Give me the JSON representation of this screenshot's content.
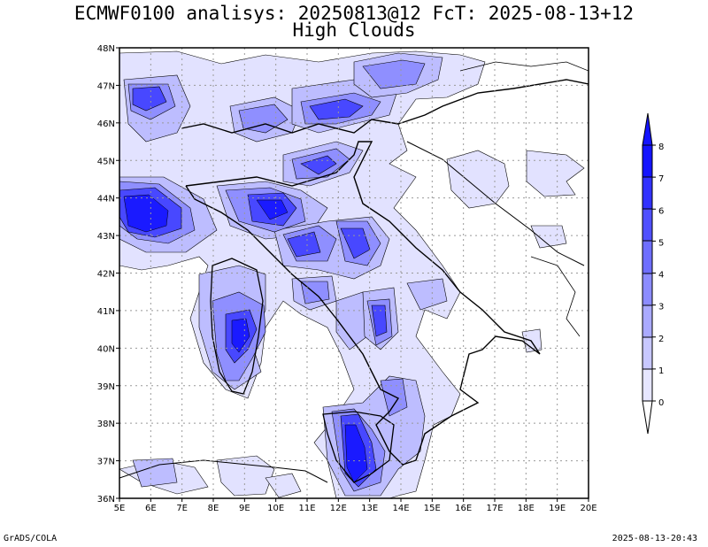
{
  "title": {
    "line1": "ECMWF0100 analisys: 20250813@12 FcT: 2025-08-13+12",
    "line2": "High Clouds"
  },
  "map": {
    "lon_labels": [
      "5E",
      "6E",
      "7E",
      "8E",
      "9E",
      "10E",
      "11E",
      "12E",
      "13E",
      "14E",
      "15E",
      "16E",
      "17E",
      "18E",
      "19E",
      "20E"
    ],
    "lat_labels": [
      "48N",
      "47N",
      "46N",
      "45N",
      "44N",
      "43N",
      "42N",
      "41N",
      "40N",
      "39N",
      "38N",
      "37N",
      "36N"
    ],
    "lon_range": [
      5,
      20
    ],
    "lat_range": [
      36,
      48
    ],
    "grid": "dotted",
    "colors": {
      "level_0_1": "#e6e6ff",
      "level_1_2": "#c8c8ff",
      "level_2_3": "#aaaaff",
      "level_3_4": "#8c8cff",
      "level_4_5": "#6e6eff",
      "level_5_6": "#5050ff",
      "level_6_7": "#3232ff",
      "level_7_8": "#1414ff"
    }
  },
  "colorbar": {
    "labels": [
      "0",
      "1",
      "2",
      "3",
      "4",
      "5",
      "6",
      "7",
      "8"
    ]
  },
  "footer": {
    "left": "GrADS/COLA",
    "right": "2025-08-13-20:43"
  }
}
